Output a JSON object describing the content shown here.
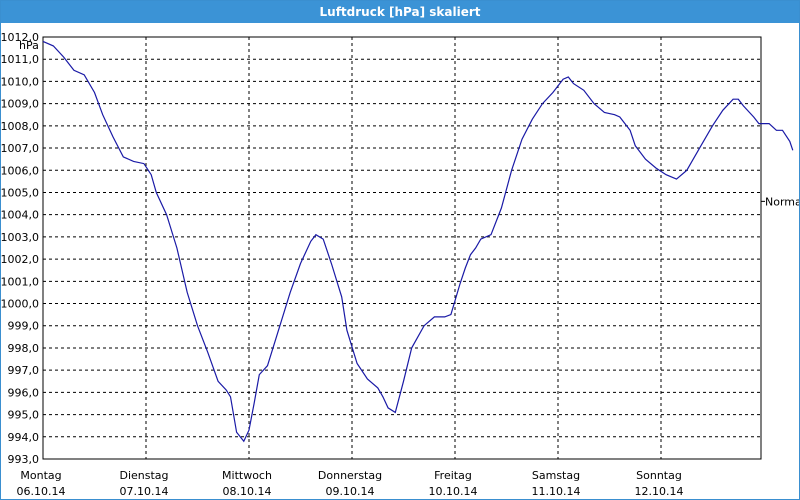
{
  "window": {
    "title": "Luftdruck [hPa] skaliert"
  },
  "chart_data": {
    "type": "line",
    "title": "Luftdruck [hPa] skaliert",
    "ylabel": "hPa",
    "xlabel": "",
    "ylim": [
      993.0,
      1012.0
    ],
    "yticks": [
      "1012,0",
      "1011,0",
      "1010,0",
      "1009,0",
      "1008,0",
      "1007,0",
      "1006,0",
      "1005,0",
      "1004,0",
      "1003,0",
      "1002,0",
      "1001,0",
      "1000,0",
      "999,0",
      "998,0",
      "997,0",
      "996,0",
      "995,0",
      "994,0",
      "993,0"
    ],
    "day_ticks": [
      {
        "day": "Montag",
        "date": "06.10.14"
      },
      {
        "day": "Dienstag",
        "date": "07.10.14"
      },
      {
        "day": "Mittwoch",
        "date": "08.10.14"
      },
      {
        "day": "Donnerstag",
        "date": "09.10.14"
      },
      {
        "day": "Freitag",
        "date": "10.10.14"
      },
      {
        "day": "Samstag",
        "date": "11.10.14"
      },
      {
        "day": "Sonntag",
        "date": "12.10.14"
      }
    ],
    "grid": true,
    "series": [
      {
        "name": "",
        "color": "#1a1aa6",
        "points": [
          [
            0.0,
            1011.8
          ],
          [
            0.1,
            1011.6
          ],
          [
            0.2,
            1011.1
          ],
          [
            0.3,
            1010.5
          ],
          [
            0.4,
            1010.3
          ],
          [
            0.5,
            1009.5
          ],
          [
            0.58,
            1008.5
          ],
          [
            0.68,
            1007.5
          ],
          [
            0.78,
            1006.6
          ],
          [
            0.88,
            1006.4
          ],
          [
            0.98,
            1006.3
          ],
          [
            1.05,
            1005.8
          ],
          [
            1.1,
            1005.0
          ],
          [
            1.2,
            1004.0
          ],
          [
            1.3,
            1002.5
          ],
          [
            1.4,
            1000.5
          ],
          [
            1.5,
            999.0
          ],
          [
            1.6,
            997.8
          ],
          [
            1.7,
            996.5
          ],
          [
            1.78,
            996.1
          ],
          [
            1.82,
            995.8
          ],
          [
            1.88,
            994.2
          ],
          [
            1.95,
            993.8
          ],
          [
            2.0,
            994.3
          ],
          [
            2.05,
            995.5
          ],
          [
            2.1,
            996.8
          ],
          [
            2.18,
            997.2
          ],
          [
            2.3,
            999.0
          ],
          [
            2.4,
            1000.5
          ],
          [
            2.5,
            1001.8
          ],
          [
            2.6,
            1002.8
          ],
          [
            2.65,
            1003.1
          ],
          [
            2.72,
            1002.9
          ],
          [
            2.8,
            1001.8
          ],
          [
            2.9,
            1000.3
          ],
          [
            2.95,
            998.8
          ],
          [
            3.05,
            997.3
          ],
          [
            3.15,
            996.6
          ],
          [
            3.25,
            996.2
          ],
          [
            3.3,
            995.8
          ],
          [
            3.35,
            995.3
          ],
          [
            3.42,
            995.1
          ],
          [
            3.5,
            996.5
          ],
          [
            3.58,
            998.0
          ],
          [
            3.7,
            999.0
          ],
          [
            3.8,
            999.4
          ],
          [
            3.9,
            999.4
          ],
          [
            3.96,
            999.5
          ],
          [
            4.05,
            1000.9
          ],
          [
            4.1,
            1001.6
          ],
          [
            4.15,
            1002.2
          ],
          [
            4.2,
            1002.5
          ],
          [
            4.25,
            1002.9
          ],
          [
            4.35,
            1003.1
          ],
          [
            4.45,
            1004.3
          ],
          [
            4.55,
            1006.0
          ],
          [
            4.65,
            1007.4
          ],
          [
            4.75,
            1008.3
          ],
          [
            4.85,
            1009.0
          ],
          [
            4.95,
            1009.5
          ],
          [
            5.0,
            1009.8
          ],
          [
            5.05,
            1010.1
          ],
          [
            5.1,
            1010.2
          ],
          [
            5.15,
            1009.9
          ],
          [
            5.25,
            1009.6
          ],
          [
            5.35,
            1009.0
          ],
          [
            5.45,
            1008.6
          ],
          [
            5.55,
            1008.5
          ],
          [
            5.6,
            1008.4
          ],
          [
            5.7,
            1007.8
          ],
          [
            5.75,
            1007.1
          ],
          [
            5.85,
            1006.5
          ],
          [
            5.95,
            1006.1
          ],
          [
            6.05,
            1005.8
          ],
          [
            6.15,
            1005.6
          ],
          [
            6.25,
            1006.0
          ],
          [
            6.3,
            1006.4
          ],
          [
            6.4,
            1007.2
          ],
          [
            6.5,
            1008.0
          ],
          [
            6.6,
            1008.7
          ],
          [
            6.7,
            1009.2
          ],
          [
            6.75,
            1009.2
          ],
          [
            6.8,
            1008.9
          ],
          [
            6.9,
            1008.4
          ],
          [
            6.95,
            1008.1
          ],
          [
            7.05,
            1008.1
          ],
          [
            7.12,
            1007.8
          ],
          [
            7.18,
            1007.8
          ],
          [
            7.25,
            1007.3
          ],
          [
            7.28,
            1006.9
          ]
        ]
      }
    ],
    "reference_line": {
      "label": "Normal",
      "value": 1004.6
    }
  }
}
